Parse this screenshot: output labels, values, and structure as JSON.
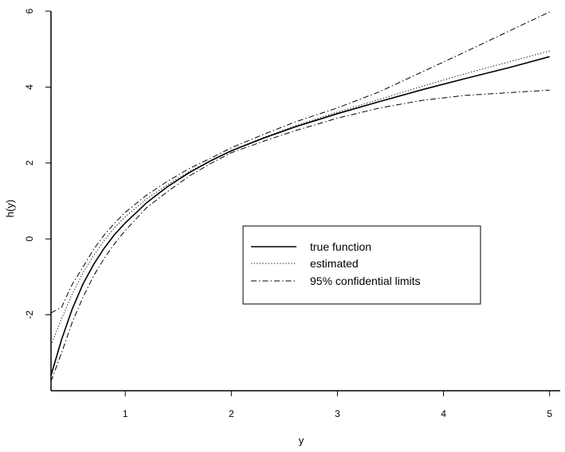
{
  "chart_data": {
    "type": "line",
    "title": "",
    "xlabel": "y",
    "ylabel": "h(y)",
    "xlim": [
      0.3,
      5.1
    ],
    "ylim": [
      -4.0,
      6.0
    ],
    "xticks": [
      1,
      2,
      3,
      4,
      5
    ],
    "xtick_labels": [
      "1",
      "2",
      "3",
      "4",
      "5"
    ],
    "yticks": [
      -2,
      0,
      2,
      4,
      6
    ],
    "ytick_labels": [
      "-2",
      "0",
      "2",
      "4",
      "6"
    ],
    "grid": false,
    "legend_position": "center-right",
    "x": [
      0.3,
      0.4,
      0.5,
      0.6,
      0.7,
      0.8,
      0.9,
      1.0,
      1.2,
      1.4,
      1.6,
      1.8,
      2.0,
      2.3,
      2.6,
      3.0,
      3.4,
      3.8,
      4.2,
      4.6,
      5.0
    ],
    "series": [
      {
        "name": "true function",
        "style": "solid",
        "values": [
          -3.6,
          -2.65,
          -1.85,
          -1.2,
          -0.68,
          -0.25,
          0.12,
          0.42,
          0.95,
          1.38,
          1.74,
          2.05,
          2.32,
          2.65,
          2.95,
          3.3,
          3.62,
          3.93,
          4.22,
          4.5,
          4.8
        ]
      },
      {
        "name": "estimated",
        "style": "dotted",
        "values": [
          -2.8,
          -2.1,
          -1.45,
          -0.9,
          -0.45,
          -0.05,
          0.3,
          0.58,
          1.05,
          1.43,
          1.77,
          2.06,
          2.33,
          2.67,
          2.98,
          3.34,
          3.68,
          4.02,
          4.35,
          4.65,
          4.95
        ]
      },
      {
        "name": "95% confidential limits",
        "style": "dashdot",
        "values": [
          -1.95,
          -1.8,
          -1.2,
          -0.75,
          -0.28,
          0.1,
          0.42,
          0.7,
          1.15,
          1.52,
          1.85,
          2.12,
          2.4,
          2.75,
          3.08,
          3.45,
          3.88,
          4.4,
          4.92,
          5.45,
          5.98
        ]
      },
      {
        "name": "95% confidential limits",
        "style": "dashdot",
        "values": [
          -3.75,
          -3.0,
          -2.2,
          -1.55,
          -0.98,
          -0.52,
          -0.12,
          0.22,
          0.82,
          1.25,
          1.65,
          1.98,
          2.27,
          2.57,
          2.85,
          3.18,
          3.45,
          3.65,
          3.78,
          3.85,
          3.92
        ]
      }
    ],
    "legend": [
      {
        "label": "true function",
        "style": "solid"
      },
      {
        "label": "estimated",
        "style": "dotted"
      },
      {
        "label": "95% confidential limits",
        "style": "dashdot"
      }
    ]
  }
}
